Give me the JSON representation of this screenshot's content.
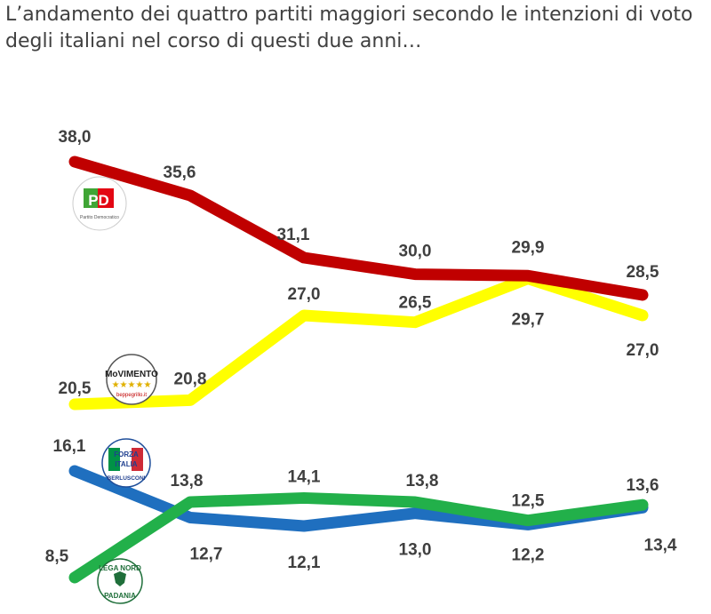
{
  "title": "L’andamento dei quattro partiti maggiori secondo le intenzioni di voto degli italiani nel corso di questi due anni…",
  "logos": {
    "pd": {
      "mark": "PD",
      "caption": "Partito Democratico"
    },
    "m5s": {
      "top": "MoVIMENTO",
      "bottom": "beppegrillo.it"
    },
    "fi": {
      "line1": "FORZA",
      "line2": "ITALIA",
      "line3": "BERLUSCONI"
    },
    "lega": {
      "arc": "LEGA NORD",
      "bottom": "PADANIA"
    }
  },
  "chart_data": {
    "type": "line",
    "x": [
      1,
      2,
      3,
      4,
      5,
      6
    ],
    "ylim": [
      0,
      40
    ],
    "grid": false,
    "legend": "party logos at left of each line",
    "series": [
      {
        "key": "pd",
        "color": "#c00000",
        "values": [
          38.0,
          35.6,
          31.1,
          30.0,
          29.9,
          28.5
        ],
        "labels": [
          "38,0",
          "35,6",
          "31,1",
          "30,0",
          "29,9",
          "28,5"
        ]
      },
      {
        "key": "m5s",
        "color": "#ffff00",
        "values": [
          20.5,
          20.8,
          27.0,
          26.5,
          29.7,
          27.0
        ],
        "labels": [
          "20,5",
          "20,8",
          "27,0",
          "26,5",
          "29,7",
          "27,0"
        ]
      },
      {
        "key": "fi",
        "color": "#1f6fbf",
        "values": [
          16.1,
          12.7,
          12.1,
          13.0,
          12.2,
          13.4
        ],
        "labels": [
          "16,1",
          "12,7",
          "12,1",
          "13,0",
          "12,2",
          "13,4"
        ]
      },
      {
        "key": "lega",
        "color": "#22b04a",
        "values": [
          8.5,
          13.8,
          14.1,
          13.8,
          12.5,
          13.6
        ],
        "labels": [
          "8,5",
          "13,8",
          "14,1",
          "13,8",
          "12,5",
          "13,6"
        ]
      }
    ]
  }
}
